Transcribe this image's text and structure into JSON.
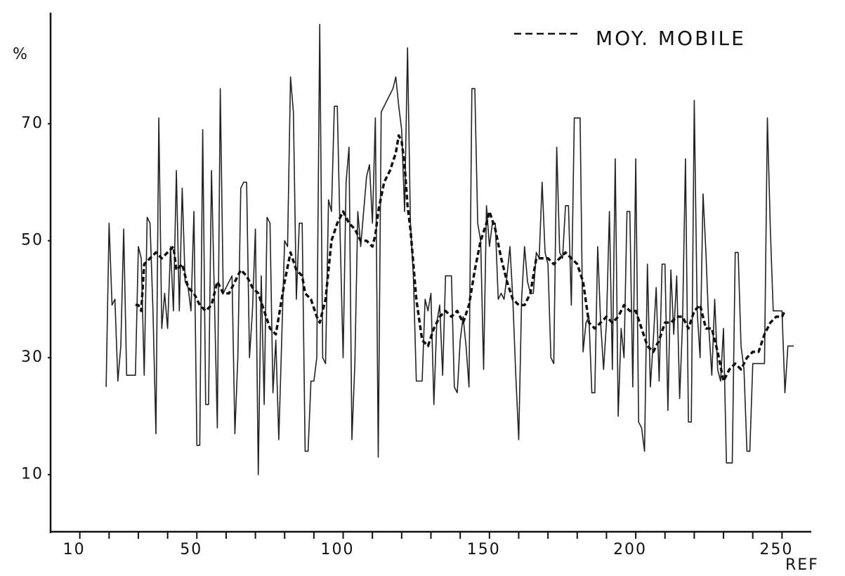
{
  "chart_data": {
    "type": "line",
    "x_label": "REF",
    "y_label": "%",
    "xlim": [
      0,
      260
    ],
    "ylim": [
      0,
      89
    ],
    "xticks": [
      10,
      50,
      100,
      150,
      200,
      250
    ],
    "xminor": [
      20,
      30,
      40,
      60,
      70,
      80,
      90,
      110,
      120,
      130,
      140,
      160,
      170,
      180,
      190,
      210,
      220,
      230,
      240
    ],
    "yticks": [
      10,
      30,
      50,
      70
    ],
    "legend": "upper right",
    "series": [
      {
        "color": "#222",
        "style": "solid",
        "x": [
          19,
          20,
          21,
          22,
          23,
          24,
          25,
          26,
          28,
          29,
          30,
          31,
          32,
          33,
          34,
          35,
          36,
          37,
          38,
          39,
          40,
          41,
          42,
          43,
          44,
          45,
          46,
          47,
          48,
          49,
          50,
          51,
          52,
          53,
          54,
          55,
          56,
          57,
          58,
          59,
          60,
          62,
          63,
          64,
          65,
          66,
          67,
          68,
          69,
          70,
          71,
          72,
          73,
          74,
          75,
          76,
          77,
          78,
          80,
          81,
          82,
          83,
          84,
          85,
          86,
          87,
          88,
          89,
          90,
          91,
          92,
          93,
          94,
          95,
          96,
          97,
          98,
          99,
          100,
          101,
          102,
          103,
          104,
          105,
          106,
          108,
          109,
          110,
          111,
          112,
          113,
          115,
          117,
          118,
          119,
          120,
          121,
          122,
          123,
          124,
          125,
          126,
          127,
          128,
          129,
          130,
          131,
          132,
          133,
          134,
          135,
          136,
          137,
          138,
          139,
          140,
          141,
          142,
          143,
          144,
          145,
          146,
          147,
          148,
          149,
          150,
          151,
          152,
          153,
          154,
          155,
          156,
          157,
          158,
          159,
          160,
          161,
          162,
          163,
          164,
          165,
          166,
          167,
          168,
          169,
          170,
          171,
          172,
          173,
          174,
          175,
          176,
          177,
          178,
          179,
          180,
          181,
          182,
          183,
          184,
          185,
          186,
          187,
          188,
          189,
          190,
          191,
          192,
          193,
          194,
          195,
          196,
          197,
          198,
          199,
          200,
          201,
          202,
          203,
          204,
          205,
          206,
          207,
          208,
          209,
          210,
          211,
          212,
          213,
          214,
          215,
          216,
          217,
          218,
          219,
          220,
          221,
          222,
          223,
          224,
          225,
          226,
          227,
          228,
          229,
          230,
          231,
          232,
          233,
          234,
          235,
          236,
          237,
          238,
          239,
          240,
          241,
          242,
          243,
          244,
          245,
          246,
          247,
          248,
          249,
          250,
          251,
          252,
          253,
          254
        ],
        "values": [
          25,
          53,
          39,
          40,
          26,
          32,
          52,
          27,
          27,
          27,
          49,
          47,
          27,
          54,
          53,
          38,
          17,
          71,
          35,
          41,
          35,
          49,
          38,
          62,
          38,
          59,
          43,
          42,
          38,
          55,
          15,
          15,
          69,
          22,
          22,
          62,
          40,
          18,
          76,
          41,
          42,
          44,
          17,
          30,
          59,
          60,
          60,
          30,
          38,
          52,
          10,
          44,
          22,
          54,
          53,
          24,
          33,
          16,
          50,
          49,
          78,
          72,
          40,
          53,
          53,
          14,
          14,
          26,
          26,
          30,
          87,
          30,
          29,
          57,
          55,
          73,
          73,
          50,
          30,
          60,
          66,
          16,
          29,
          55,
          49,
          61,
          63,
          53,
          71,
          13,
          72,
          74,
          76,
          78,
          73,
          69,
          55,
          83,
          53,
          44,
          26,
          26,
          26,
          40,
          38,
          41,
          22,
          36,
          39,
          27,
          44,
          44,
          44,
          25,
          24,
          33,
          37,
          32,
          25,
          76,
          76,
          53,
          50,
          28,
          56,
          49,
          53,
          53,
          40,
          41,
          40,
          44,
          49,
          40,
          27,
          16,
          40,
          49,
          43,
          41,
          41,
          48,
          47,
          60,
          48,
          46,
          30,
          29,
          66,
          48,
          47,
          56,
          56,
          39,
          71,
          71,
          71,
          31,
          36,
          37,
          24,
          24,
          49,
          36,
          28,
          36,
          55,
          28,
          64,
          20,
          35,
          30,
          55,
          55,
          25,
          64,
          19,
          18,
          14,
          46,
          25,
          33,
          42,
          26,
          46,
          46,
          21,
          45,
          34,
          44,
          23,
          36,
          64,
          19,
          19,
          74,
          38,
          30,
          58,
          48,
          35,
          27,
          40,
          28,
          26,
          35,
          12,
          12,
          12,
          48,
          48,
          32,
          28,
          14,
          14,
          29,
          29,
          29,
          29,
          29,
          71,
          52,
          38,
          38,
          38,
          38,
          24,
          32,
          32,
          32
        ]
      },
      {
        "name": "MOY. MOBILE",
        "color": "#111",
        "style": "dashed",
        "x": [
          29,
          30,
          31,
          32,
          34,
          36,
          38,
          40,
          42,
          43,
          45,
          47,
          49,
          51,
          53,
          55,
          57,
          59,
          61,
          63,
          65,
          67,
          69,
          71,
          73,
          75,
          77,
          78,
          80,
          82,
          84,
          86,
          87,
          89,
          91,
          92,
          94,
          96,
          98,
          100,
          102,
          104,
          106,
          108,
          110,
          111,
          112,
          114,
          116,
          118,
          119,
          120,
          121,
          122,
          123,
          125,
          127,
          129,
          131,
          133,
          135,
          137,
          139,
          141,
          143,
          145,
          147,
          149,
          150,
          152,
          154,
          156,
          158,
          160,
          162,
          164,
          166,
          168,
          170,
          172,
          174,
          176,
          178,
          180,
          182,
          184,
          186,
          188,
          190,
          192,
          194,
          196,
          198,
          200,
          202,
          204,
          206,
          208,
          210,
          212,
          214,
          216,
          218,
          220,
          222,
          224,
          226,
          228,
          230,
          232,
          234,
          236,
          238,
          240,
          242,
          244,
          246,
          248,
          250,
          251
        ],
        "values": [
          39,
          39,
          38,
          46,
          47,
          48,
          47,
          48,
          49,
          45,
          46,
          42,
          41,
          39,
          38,
          39,
          43,
          41,
          41,
          43,
          45,
          44,
          42,
          41,
          38,
          35,
          34,
          37,
          43,
          48,
          45,
          44,
          41,
          40,
          37,
          36,
          40,
          50,
          53,
          55,
          53,
          52,
          50,
          50,
          49,
          51,
          55,
          60,
          62,
          65,
          68,
          67,
          63,
          56,
          52,
          40,
          33,
          32,
          35,
          37,
          38,
          37,
          38,
          36,
          39,
          45,
          50,
          53,
          55,
          52,
          47,
          43,
          40,
          39,
          39,
          41,
          47,
          47,
          47,
          46,
          47,
          48,
          47,
          46,
          43,
          36,
          35,
          36,
          37,
          36,
          37,
          39,
          38,
          38,
          35,
          32,
          31,
          33,
          36,
          36,
          37,
          37,
          35,
          38,
          39,
          35,
          35,
          31,
          26,
          28,
          29,
          28,
          30,
          31,
          31,
          34,
          36,
          37,
          37,
          38
        ]
      }
    ]
  }
}
